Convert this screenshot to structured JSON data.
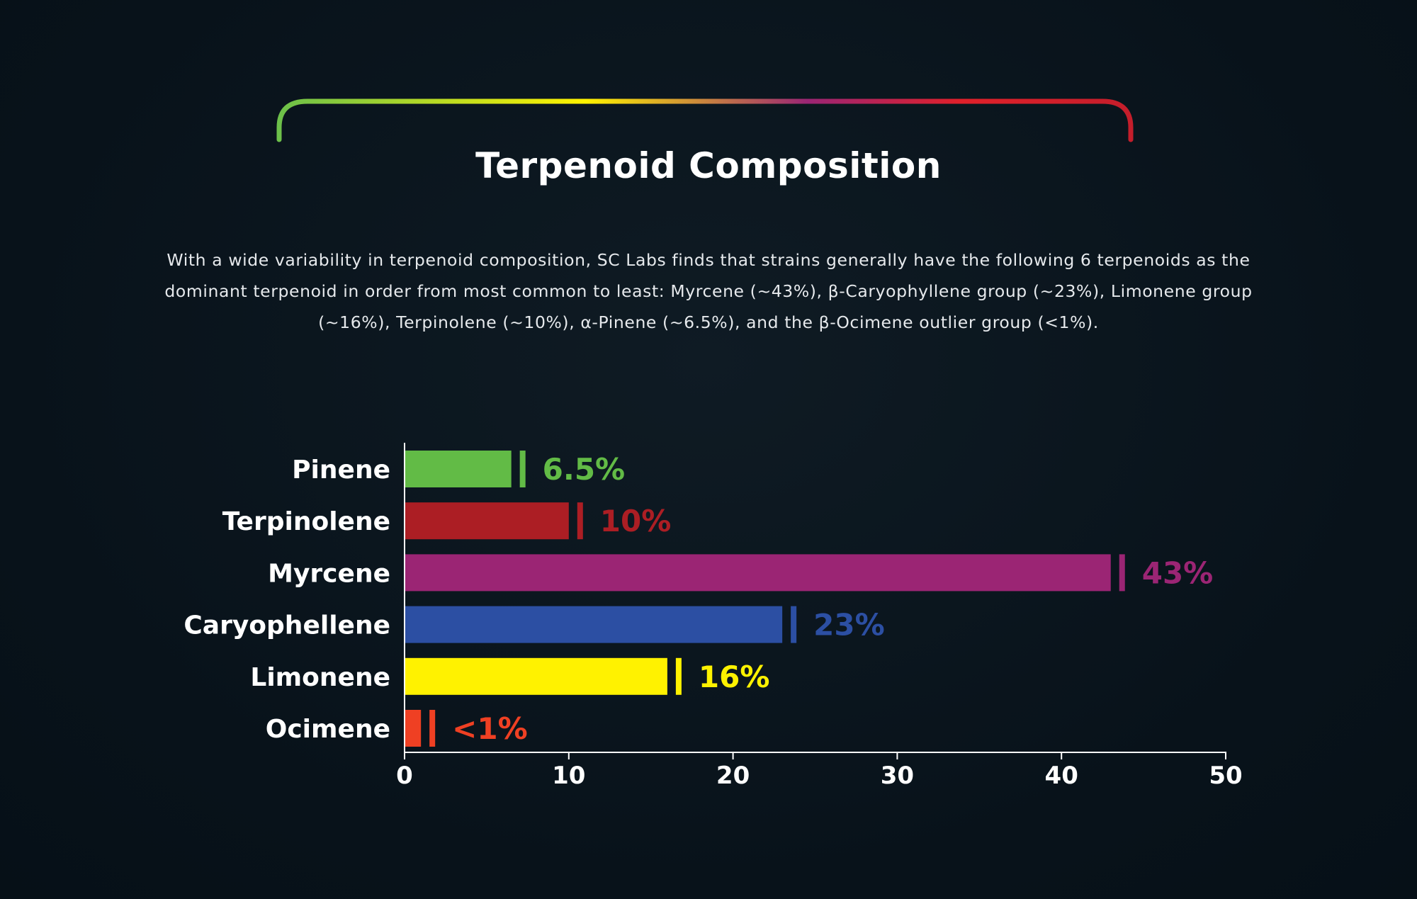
{
  "header": {
    "title": "Terpenoid Composition",
    "description": "With a wide variability in terpenoid composition, SC Labs finds that strains generally have the following 6 terpenoids as the dominant terpenoid in order from most common to least: Myrcene (~43%), β-Caryophyllene group (~23%), Limonene group (~16%), Terpinolene (~10%), α-Pinene (~6.5%), and the β-Ocimene outlier group (<1%)."
  },
  "arc_gradient": [
    "#6cc04a",
    "#fff200",
    "#9b2574",
    "#e0202a",
    "#c41e2b"
  ],
  "chart_data": {
    "type": "bar",
    "orientation": "horizontal",
    "title": "",
    "xlabel": "",
    "ylabel": "",
    "xlim": [
      0,
      50
    ],
    "x_ticks": [
      "0",
      "10",
      "20",
      "30",
      "40",
      "50"
    ],
    "x_tick_values": [
      0,
      10,
      20,
      30,
      40,
      50
    ],
    "grid": false,
    "categories": [
      "Pinene",
      "Terpinolene",
      "Myrcene",
      "Caryophellene",
      "Limonene",
      "Ocimene"
    ],
    "values": [
      6.5,
      10,
      43,
      23,
      16,
      1
    ],
    "value_labels": [
      "6.5%",
      "10%",
      "43%",
      "23%",
      "16%",
      "<1%"
    ],
    "colors": [
      "#62bb46",
      "#ac1e24",
      "#9b2574",
      "#2c4fa3",
      "#fff200",
      "#ef4023"
    ]
  }
}
